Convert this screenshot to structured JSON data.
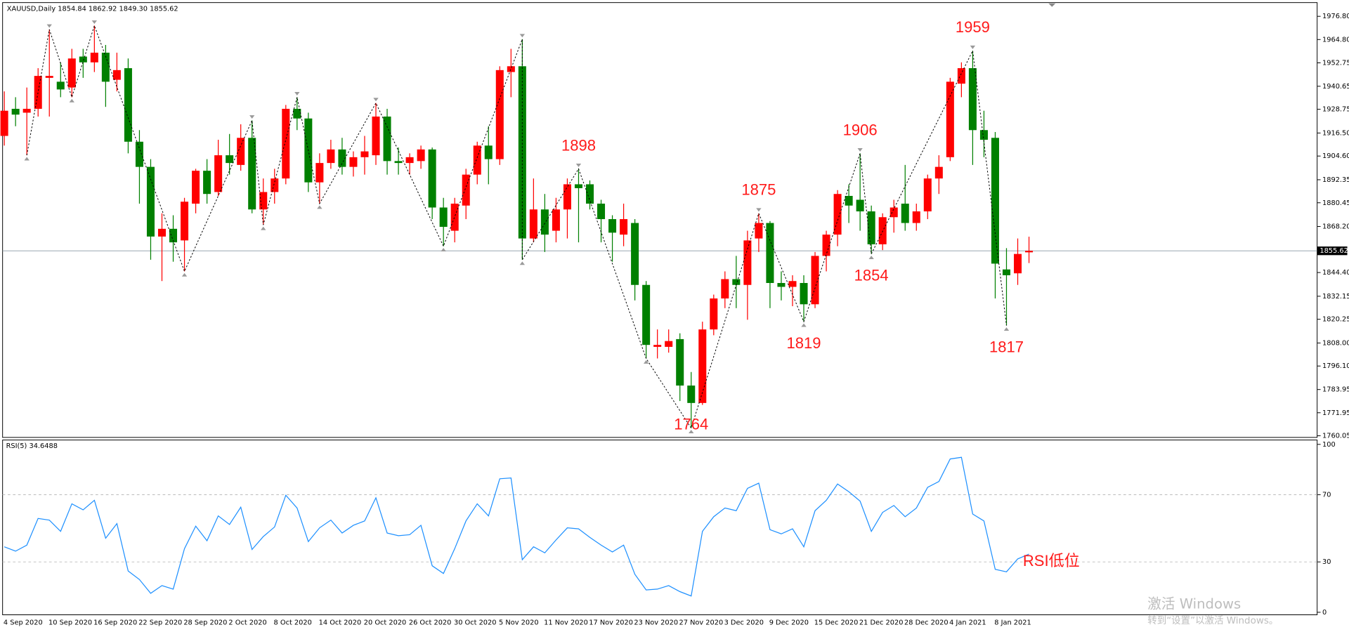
{
  "chart_data": [
    {
      "type": "candlestick",
      "title": "XAUUSD,Daily  1854.84 1862.92 1849.30 1855.62",
      "categories": [
        "4 Sep 2020",
        null,
        null,
        null,
        "10 Sep 2020",
        null,
        null,
        null,
        "16 Sep 2020",
        null,
        null,
        null,
        "22 Sep 2020",
        null,
        null,
        null,
        "28 Sep 2020",
        null,
        null,
        null,
        "2 Oct 2020",
        null,
        null,
        null,
        "8 Oct 2020",
        null,
        null,
        null,
        "14 Oct 2020",
        null,
        null,
        null,
        "20 Oct 2020",
        null,
        null,
        null,
        "26 Oct 2020",
        null,
        null,
        null,
        "30 Oct 2020",
        null,
        null,
        null,
        "5 Nov 2020",
        null,
        null,
        null,
        "11 Nov 2020",
        null,
        null,
        null,
        "17 Nov 2020",
        null,
        null,
        null,
        "23 Nov 2020",
        null,
        null,
        null,
        "27 Nov 2020",
        null,
        null,
        null,
        "3 Dec 2020",
        null,
        null,
        null,
        "9 Dec 2020",
        null,
        null,
        null,
        "15 Dec 2020",
        null,
        null,
        null,
        "21 Dec 2020",
        null,
        null,
        null,
        "28 Dec 2020",
        null,
        null,
        null,
        "4 Jan 2021",
        null,
        null,
        null,
        "8 Jan 2021",
        null,
        null,
        null
      ],
      "open": [
        1915,
        1929,
        1927,
        1929,
        1945,
        1943,
        1940,
        1956,
        1953,
        1958,
        1944,
        1950,
        1912,
        1899,
        1863,
        1867,
        1861,
        1880,
        1897,
        1886,
        1905,
        1900,
        1914,
        1877,
        1886,
        1893,
        1929,
        1924,
        1891,
        1901,
        1908,
        1899,
        1904,
        1905,
        1925,
        1902,
        1901,
        1902,
        1908,
        1878,
        1866,
        1879,
        1895,
        1910,
        1903,
        1948,
        1951,
        1862,
        1877,
        1866,
        1877,
        1890,
        1890,
        1880,
        1872,
        1864,
        1870,
        1838,
        1806,
        1806,
        1810,
        1786,
        1777,
        1815,
        1831,
        1841,
        1838,
        1862,
        1870,
        1839,
        1837,
        1839,
        1828,
        1853,
        1864,
        1884,
        1882,
        1876,
        1859,
        1873,
        1880,
        1870,
        1876,
        1893,
        1904,
        1942,
        1950,
        1918,
        1914,
        1846,
        1844,
        1854.84
      ],
      "high": [
        1938,
        1935,
        1940,
        1950,
        1970,
        1953,
        1960,
        1960,
        1972,
        1962,
        1958,
        1955,
        1918,
        1903,
        1875,
        1874,
        1883,
        1898,
        1903,
        1913,
        1916,
        1921,
        1923,
        1893,
        1898,
        1931,
        1935,
        1927,
        1906,
        1913,
        1914,
        1907,
        1915,
        1932,
        1929,
        1909,
        1906,
        1910,
        1909,
        1883,
        1883,
        1898,
        1912,
        1920,
        1951,
        1960,
        1965,
        1893,
        1885,
        1883,
        1893,
        1898,
        1892,
        1882,
        1874,
        1880,
        1872,
        1840,
        1815,
        1815,
        1813,
        1793,
        1819,
        1833,
        1845,
        1853,
        1866,
        1875,
        1871,
        1845,
        1843,
        1843,
        1855,
        1866,
        1887,
        1890,
        1906,
        1879,
        1875,
        1882,
        1900,
        1880,
        1895,
        1905,
        1945,
        1953,
        1959,
        1928,
        1917,
        1857,
        1862,
        1862.92
      ],
      "low": [
        1910,
        1920,
        1905,
        1925,
        1925,
        1935,
        1935,
        1945,
        1948,
        1930,
        1938,
        1906,
        1880,
        1851,
        1840,
        1850,
        1845,
        1875,
        1880,
        1884,
        1895,
        1897,
        1875,
        1869,
        1880,
        1890,
        1918,
        1886,
        1880,
        1898,
        1895,
        1894,
        1895,
        1900,
        1895,
        1895,
        1895,
        1898,
        1872,
        1858,
        1860,
        1872,
        1890,
        1890,
        1900,
        1935,
        1851,
        1860,
        1855,
        1860,
        1862,
        1860,
        1877,
        1860,
        1850,
        1858,
        1830,
        1800,
        1800,
        1803,
        1778,
        1764,
        1776,
        1812,
        1826,
        1826,
        1820,
        1855,
        1826,
        1830,
        1827,
        1819,
        1826,
        1845,
        1858,
        1870,
        1866,
        1854,
        1856,
        1865,
        1866,
        1866,
        1872,
        1885,
        1902,
        1935,
        1900,
        1904,
        1831,
        1817,
        1838,
        1849.3
      ],
      "close": [
        1928,
        1926,
        1929,
        1946,
        1946,
        1939,
        1955,
        1953,
        1958,
        1943,
        1949,
        1912,
        1899,
        1863,
        1867,
        1860,
        1881,
        1897,
        1885,
        1905,
        1901,
        1914,
        1877,
        1886,
        1893,
        1929,
        1924,
        1891,
        1901,
        1908,
        1899,
        1904,
        1907,
        1925,
        1902,
        1901,
        1904,
        1908,
        1878,
        1868,
        1880,
        1895,
        1910,
        1903,
        1949,
        1951,
        1862,
        1877,
        1864,
        1877,
        1890,
        1888,
        1880,
        1872,
        1865,
        1872,
        1838,
        1807,
        1807,
        1809,
        1786,
        1777,
        1815,
        1831,
        1841,
        1838,
        1861,
        1870,
        1839,
        1837,
        1840,
        1828,
        1853,
        1864,
        1885,
        1879,
        1876,
        1859,
        1873,
        1878,
        1870,
        1876,
        1893,
        1899,
        1943,
        1950,
        1918,
        1913,
        1849,
        1843,
        1854,
        1855.62
      ],
      "up_color": "#ff0000",
      "down_color": "#008000",
      "ylim": [
        1759.2,
        1983.0
      ],
      "yticks": [
        {
          "value": 1976.8,
          "label": "1976.80"
        },
        {
          "value": 1964.8,
          "label": "1964.80"
        },
        1952.75,
        1940.65,
        1928.75,
        {
          "value": 1916.5,
          "label": "1916.50"
        },
        {
          "value": 1904.6,
          "label": "1904.60"
        },
        1892.35,
        1880.45,
        {
          "value": 1868.2,
          "label": "1868.20"
        },
        {
          "value": 1844.4,
          "label": "1844.40"
        },
        1832.15,
        1820.25,
        {
          "value": 1808,
          "label": "1808.00"
        },
        {
          "value": 1796.1,
          "label": "1796.10"
        },
        1783.95,
        1771.95,
        1760.05
      ],
      "current_price": 1855.62,
      "zigzag": {
        "color": "#000000",
        "x": [
          2,
          4,
          6,
          8,
          16,
          22,
          23,
          26,
          28,
          33,
          39,
          46,
          46,
          51,
          57,
          61,
          67,
          71,
          76,
          77,
          86,
          89
        ],
        "values": [
          1905,
          1970,
          1935,
          1972,
          1845,
          1923,
          1869,
          1935,
          1880,
          1932,
          1858,
          1965,
          1851,
          1898,
          1800,
          1764,
          1875,
          1819,
          1906,
          1854,
          1959,
          1817
        ]
      },
      "annotations": [
        {
          "x": 51,
          "value": 1898,
          "position": "above"
        },
        {
          "x": 61,
          "value": 1764,
          "position": "below"
        },
        {
          "x": 67,
          "value": 1875,
          "position": "above"
        },
        {
          "x": 71,
          "value": 1819,
          "position": "below"
        },
        {
          "x": 76,
          "value": 1906,
          "position": "above"
        },
        {
          "x": 77,
          "value": 1854,
          "position": "below"
        },
        {
          "x": 86,
          "value": 1959,
          "position": "above"
        },
        {
          "x": 89,
          "value": 1817,
          "position": "below"
        }
      ],
      "annotation_color": "#ff1a1a"
    },
    {
      "type": "line",
      "title": "RSI(5) 34.6488",
      "color": "#1e90ff",
      "values": [
        39.0,
        36.4,
        40.0,
        55.9,
        54.9,
        48.2,
        64.6,
        61.0,
        66.7,
        44.1,
        52.8,
        24.6,
        19.5,
        11.3,
        15.9,
        13.8,
        37.9,
        51.3,
        42.6,
        57.4,
        52.3,
        62.6,
        37.4,
        45.1,
        50.8,
        69.7,
        62.1,
        42.1,
        50.3,
        54.9,
        47.2,
        51.8,
        54.4,
        68.2,
        47.2,
        45.6,
        46.2,
        51.8,
        27.7,
        23.1,
        37.9,
        54.4,
        64.6,
        57.4,
        79.5,
        80.0,
        31.3,
        39.0,
        35.4,
        43.1,
        50.3,
        49.7,
        44.6,
        40.0,
        35.9,
        40.0,
        22.6,
        13.3,
        13.8,
        15.9,
        12.3,
        9.7,
        48.2,
        56.9,
        62.1,
        60.5,
        73.8,
        76.9,
        49.2,
        46.7,
        49.7,
        39.0,
        60.5,
        66.7,
        76.4,
        71.8,
        66.2,
        48.2,
        59.5,
        63.6,
        56.9,
        62.1,
        74.4,
        77.9,
        91.3,
        92.3,
        58.5,
        54.4,
        25.6,
        24.1,
        31.8,
        34.6488
      ],
      "ylim": [
        -1.5,
        102.6
      ],
      "yticks": [
        100,
        70,
        30,
        0
      ],
      "levels": [
        70,
        30
      ],
      "annotations": [
        {
          "text": "RSI低位",
          "x": 90,
          "y": 30
        }
      ],
      "annotation_color": "#ff1a1a"
    }
  ],
  "watermark": {
    "title": "激活 Windows",
    "subtitle": "转到“设置”以激活 Windows。"
  }
}
